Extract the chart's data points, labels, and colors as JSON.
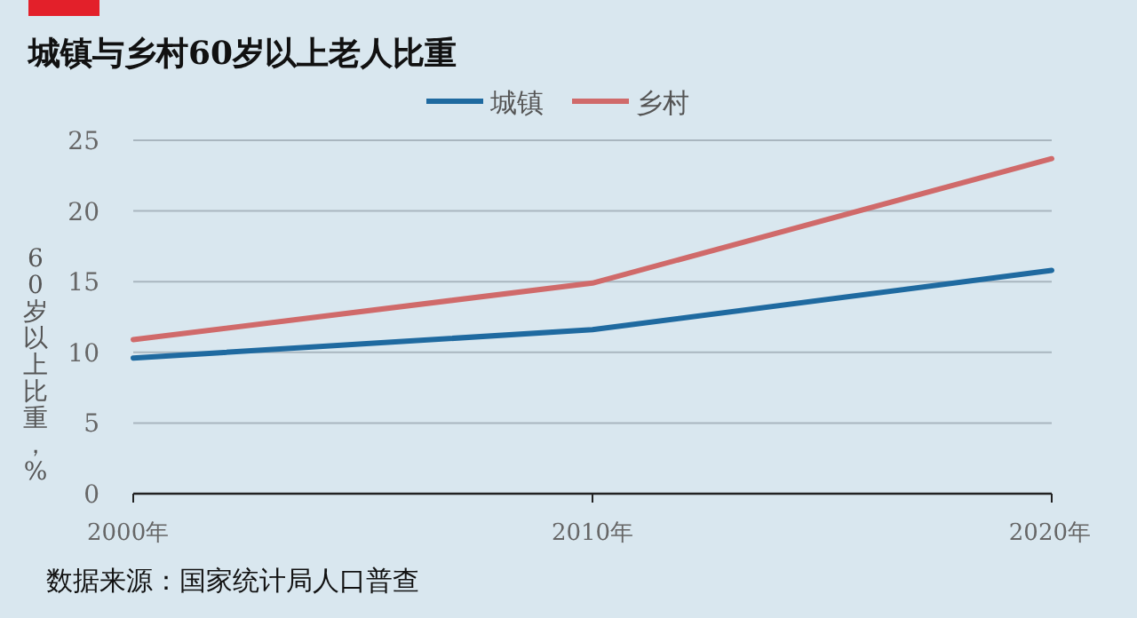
{
  "chart_data": {
    "type": "line",
    "title": "城镇与乡村60岁以上老人比重",
    "ylabel": "60岁以上比重，%",
    "categories": [
      "2000年",
      "2010年",
      "2020年"
    ],
    "series": [
      {
        "name": "城镇",
        "color": "#1f6aa0",
        "values": [
          9.6,
          11.6,
          15.8
        ]
      },
      {
        "name": "乡村",
        "color": "#d06a6a",
        "values": [
          10.9,
          14.9,
          23.7
        ]
      }
    ],
    "ylim": [
      0,
      25
    ],
    "yticks": [
      0,
      5,
      10,
      15,
      20,
      25
    ],
    "grid": "y",
    "legend": "top",
    "annotations": [
      "数据来源：国家统计局人口普查"
    ]
  }
}
